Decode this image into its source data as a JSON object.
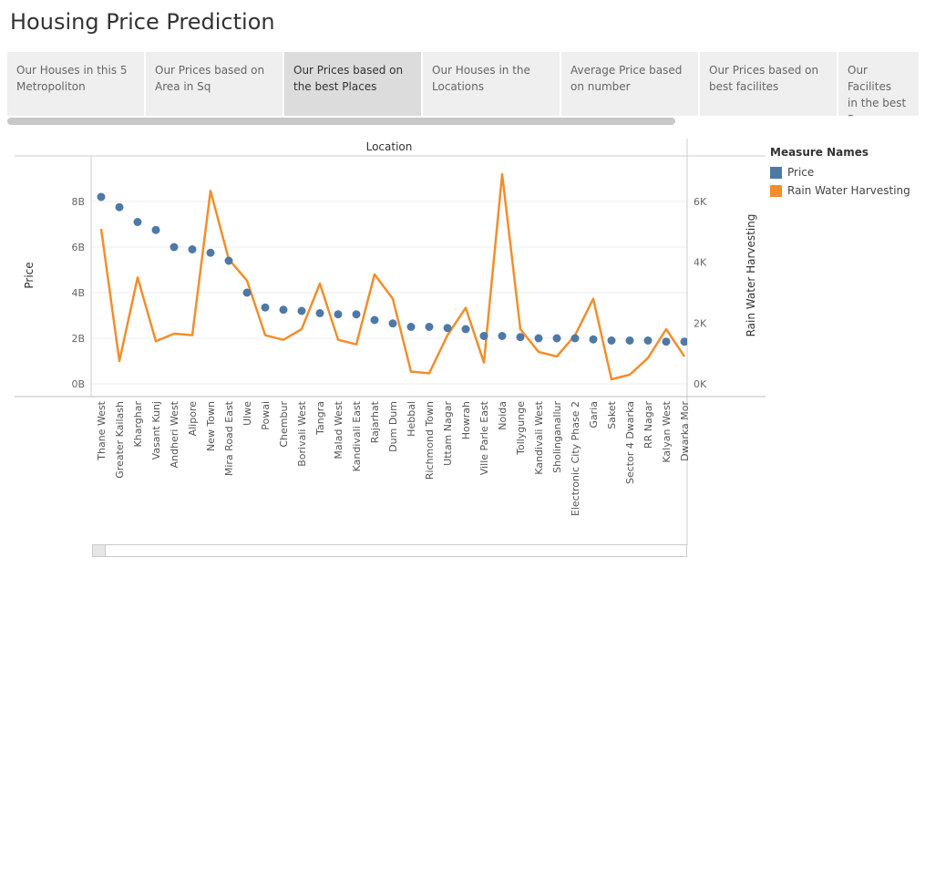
{
  "page": {
    "title": "Housing Price Prediction"
  },
  "tabs": [
    {
      "line1": " Our Houses in this 5",
      "line2": "Metropoliton",
      "active": false
    },
    {
      "line1": "Our Prices based  on",
      "line2": "Area in Sq",
      "active": false
    },
    {
      "line1": "Our Prices based on",
      "line2": "the best Places",
      "active": true
    },
    {
      "line1": "Our Houses in the",
      "line2": "Locations",
      "active": false
    },
    {
      "line1": "Average Price based",
      "line2": "on number",
      "active": false
    },
    {
      "line1": "Our Prices based on",
      "line2": "best facilites",
      "active": false
    },
    {
      "line1": "Our Facilites",
      "line2": "in the best P...",
      "active": false
    }
  ],
  "colors": {
    "price": "#4e79a7",
    "rwh": "#f28e2b"
  },
  "legend": {
    "title": "Measure Names",
    "items": [
      {
        "label": "Price",
        "color": "#4e79a7"
      },
      {
        "label": "Rain Water Harvesting",
        "color": "#f28e2b"
      }
    ]
  },
  "chart_data": {
    "type": "scatter",
    "title": "",
    "xlabel": "Location",
    "ylabel": "Price",
    "y2label": "Rain Water Harvesting",
    "ylim": [
      0,
      10
    ],
    "y2lim": [
      0,
      7.5
    ],
    "y_ticks": [
      "0B",
      "2B",
      "4B",
      "6B",
      "8B"
    ],
    "y2_ticks": [
      "0K",
      "2K",
      "4K",
      "6K"
    ],
    "grid": true,
    "legend_position": "right",
    "categories": [
      "Thane West",
      "Greater Kailash",
      "Kharghar",
      "Vasant Kunj",
      "Andheri West",
      "Alipore",
      "New Town",
      "Mira Road East",
      "Ulwe",
      "Powai",
      "Chembur",
      "Borivali West",
      "Tangra",
      "Malad West",
      "Kandivali East",
      "Rajarhat",
      "Dum Dum",
      "Hebbal",
      "Richmond Town",
      "Uttam Nagar",
      "Howrah",
      "Ville Parle East",
      "Noida",
      "Tollygunge",
      "Kandivali West",
      "Sholinganallur",
      "Electronic City Phase 2",
      "Garia",
      "Saket",
      "Sector 4 Dwarka",
      "RR Nagar",
      "Kalyan West",
      "Dwarka Mor"
    ],
    "series": [
      {
        "name": "Price",
        "type": "scatter",
        "unit": "B",
        "values": [
          8.2,
          7.75,
          7.1,
          6.75,
          6.0,
          5.9,
          5.75,
          5.4,
          4.0,
          3.35,
          3.25,
          3.2,
          3.1,
          3.05,
          3.05,
          2.8,
          2.65,
          2.5,
          2.5,
          2.45,
          2.4,
          2.1,
          2.1,
          2.05,
          2.0,
          2.0,
          2.0,
          1.95,
          1.9,
          1.9,
          1.9,
          1.85,
          1.85
        ]
      },
      {
        "name": "Rain Water Harvesting",
        "type": "line",
        "unit": "K",
        "values": [
          5.1,
          0.75,
          3.5,
          1.4,
          1.65,
          1.6,
          6.35,
          4.1,
          3.4,
          1.6,
          1.45,
          1.8,
          3.3,
          1.45,
          1.3,
          3.6,
          2.8,
          0.4,
          0.35,
          1.6,
          2.5,
          0.7,
          6.9,
          1.8,
          1.05,
          0.9,
          1.6,
          2.8,
          0.15,
          0.3,
          0.85,
          1.8,
          0.9
        ]
      }
    ]
  }
}
